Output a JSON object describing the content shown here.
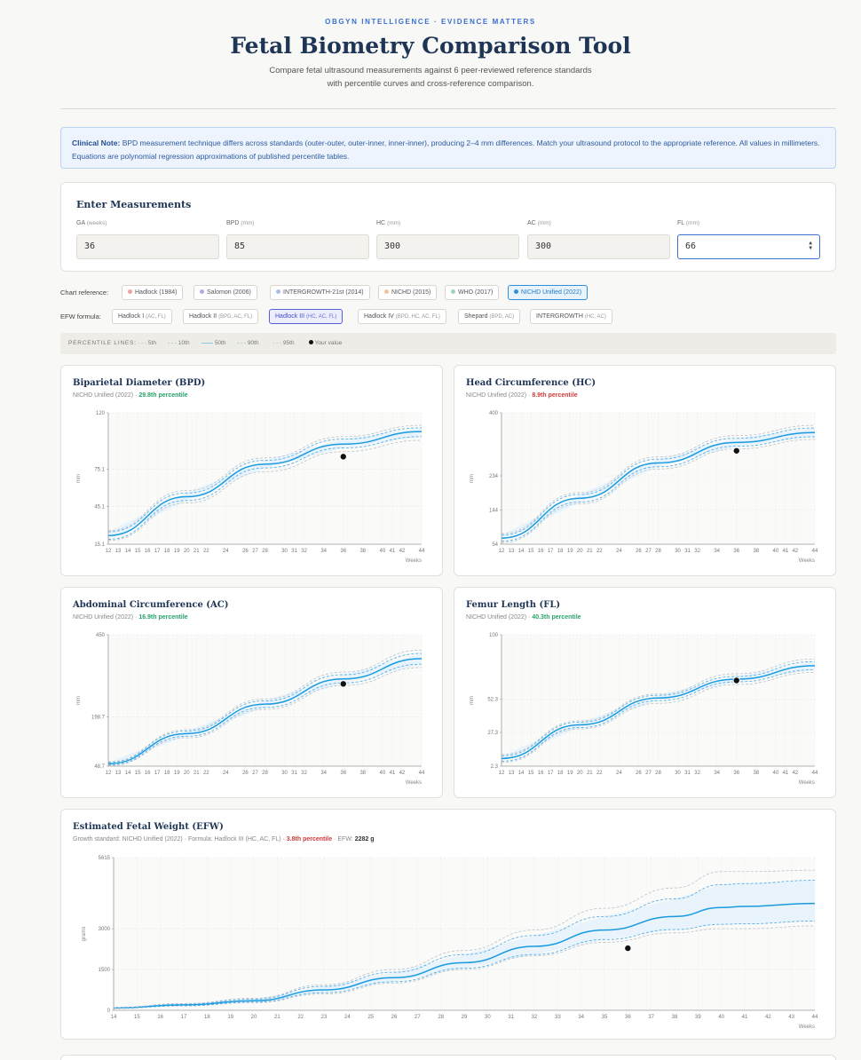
{
  "header": {
    "kicker": "OBGYN INTELLIGENCE · EVIDENCE MATTERS",
    "title": "Fetal Biometry Comparison Tool",
    "subtitle": "Compare fetal ultrasound measurements against 6 peer-reviewed reference standards with percentile curves and cross-reference comparison."
  },
  "note": {
    "label": "Clinical Note:",
    "text": "BPD measurement technique differs across standards (outer-outer, outer-inner, inner-inner), producing 2–4 mm differences. Match your ultrasound protocol to the appropriate reference. All values in millimeters. Equations are polynomial regression approximations of published percentile tables."
  },
  "entry": {
    "title": "Enter Measurements",
    "fields": [
      {
        "label": "GA",
        "unit": "(weeks)",
        "value": "36"
      },
      {
        "label": "BPD",
        "unit": "(mm)",
        "value": "85"
      },
      {
        "label": "HC",
        "unit": "(mm)",
        "value": "300"
      },
      {
        "label": "AC",
        "unit": "(mm)",
        "value": "300"
      },
      {
        "label": "FL",
        "unit": "(mm)",
        "value": "66"
      }
    ]
  },
  "chart_reference": {
    "label": "Chart reference:",
    "options": [
      {
        "label": "Hadlock (1984)",
        "color": "#e8a3a3"
      },
      {
        "label": "Salomon (2006)",
        "color": "#b9a8e6"
      },
      {
        "label": "INTERGROWTH-21st (2014)",
        "color": "#a8bde8"
      },
      {
        "label": "NICHD (2015)",
        "color": "#eec49a"
      },
      {
        "label": "WHO (2017)",
        "color": "#9fd3c0"
      },
      {
        "label": "NICHD Unified (2022)",
        "color": "#2f8fd9",
        "selected": true
      }
    ]
  },
  "efw_formula": {
    "label": "EFW formula:",
    "options": [
      {
        "label": "Hadlock I",
        "params": "(AC, FL)"
      },
      {
        "label": "Hadlock II",
        "params": "(BPD, AC, FL)"
      },
      {
        "label": "Hadlock III",
        "params": "(HC, AC, FL)",
        "selected": true
      },
      {
        "label": "Hadlock IV",
        "params": "(BPD, HC, AC, FL)"
      },
      {
        "label": "Shepard",
        "params": "(BPD, AC)"
      },
      {
        "label": "INTERGROWTH",
        "params": "(HC, AC)"
      }
    ]
  },
  "legend": {
    "label": "PERCENTILE LINES:",
    "items": [
      "5th",
      "10th",
      "50th",
      "90th",
      "95th",
      "Your value"
    ]
  },
  "colors": {
    "curve": "#1a9be0",
    "band": "#e3f1fb",
    "outer": "#9aa6b2",
    "point": "#111111"
  },
  "cards": {
    "bpd": {
      "title": "Biparietal Diameter (BPD)",
      "source": "NICHD Unified (2022) · ",
      "pct": "29.8th percentile"
    },
    "hc": {
      "title": "Head Circumference (HC)",
      "source": "NICHD Unified (2022) · ",
      "pct": "8.9th percentile"
    },
    "ac": {
      "title": "Abdominal Circumference (AC)",
      "source": "NICHD Unified (2022) · ",
      "pct": "16.9th percentile"
    },
    "fl": {
      "title": "Femur Length (FL)",
      "source": "NICHD Unified (2022) · ",
      "pct": "40.3th percentile"
    },
    "efw": {
      "title": "Estimated Fetal Weight (EFW)",
      "prefix": "Growth standard: NICHD Unified (2022) · Formula: Hadlock III (HC, AC, FL) · ",
      "pct": "3.8th percentile",
      "mid": " · EFW: ",
      "efw": "2282 g"
    }
  },
  "chart_data": [
    {
      "type": "line",
      "id": "bpd",
      "xlabel": "Weeks",
      "ylabel": "mm",
      "xlim": [
        12,
        44
      ],
      "ylim": [
        15.1,
        120
      ],
      "xticks": [
        12,
        13,
        14,
        15,
        16,
        17,
        18,
        19,
        20,
        21,
        22,
        24,
        26,
        27,
        28,
        30,
        31,
        32,
        34,
        36,
        38,
        40,
        41,
        42,
        44
      ],
      "yticks": [
        15.1,
        45.1,
        75.1,
        120
      ],
      "x": [
        12,
        20,
        28,
        36,
        44
      ],
      "series": [
        {
          "values": [
            18,
            48,
            73,
            89,
            98
          ]
        },
        {
          "values": [
            19,
            50,
            76,
            92,
            101
          ]
        },
        {
          "values": [
            22,
            53,
            79,
            95,
            105
          ]
        },
        {
          "values": [
            25,
            56,
            82,
            99,
            108
          ]
        },
        {
          "values": [
            26,
            58,
            84,
            101,
            110
          ]
        }
      ],
      "point": {
        "x": 36,
        "y": 85
      }
    },
    {
      "type": "line",
      "id": "hc",
      "xlabel": "Weeks",
      "ylabel": "mm",
      "xlim": [
        12,
        44
      ],
      "ylim": [
        54,
        400
      ],
      "xticks": [
        12,
        13,
        14,
        15,
        16,
        17,
        18,
        19,
        20,
        21,
        22,
        24,
        26,
        27,
        28,
        30,
        31,
        32,
        34,
        36,
        38,
        40,
        41,
        42,
        44
      ],
      "yticks": [
        54,
        144,
        234,
        400
      ],
      "x": [
        12,
        20,
        28,
        36,
        44
      ],
      "series": [
        {
          "values": [
            58,
            160,
            252,
            305,
            330
          ]
        },
        {
          "values": [
            62,
            165,
            258,
            312,
            337
          ]
        },
        {
          "values": [
            70,
            175,
            268,
            322,
            348
          ]
        },
        {
          "values": [
            78,
            185,
            278,
            333,
            360
          ]
        },
        {
          "values": [
            82,
            190,
            284,
            340,
            367
          ]
        }
      ],
      "point": {
        "x": 36,
        "y": 300
      }
    },
    {
      "type": "line",
      "id": "ac",
      "xlabel": "Weeks",
      "ylabel": "mm",
      "xlim": [
        12,
        44
      ],
      "ylim": [
        48.7,
        450
      ],
      "xticks": [
        12,
        13,
        14,
        15,
        16,
        17,
        18,
        19,
        20,
        21,
        22,
        24,
        26,
        27,
        28,
        30,
        31,
        32,
        34,
        36,
        38,
        40,
        41,
        42,
        44
      ],
      "yticks": [
        48.7,
        198.7,
        450
      ],
      "x": [
        12,
        20,
        28,
        36,
        44
      ],
      "series": [
        {
          "values": [
            50,
            135,
            222,
            295,
            350
          ]
        },
        {
          "values": [
            52,
            140,
            228,
            303,
            360
          ]
        },
        {
          "values": [
            56,
            148,
            238,
            315,
            377
          ]
        },
        {
          "values": [
            60,
            156,
            248,
            328,
            393
          ]
        },
        {
          "values": [
            62,
            160,
            254,
            336,
            403
          ]
        }
      ],
      "point": {
        "x": 36,
        "y": 300
      }
    },
    {
      "type": "line",
      "id": "fl",
      "xlabel": "Weeks",
      "ylabel": "mm",
      "xlim": [
        12,
        44
      ],
      "ylim": [
        2.3,
        100
      ],
      "xticks": [
        12,
        13,
        14,
        15,
        16,
        17,
        18,
        19,
        20,
        21,
        22,
        24,
        26,
        27,
        28,
        30,
        31,
        32,
        34,
        36,
        38,
        40,
        41,
        42,
        44
      ],
      "yticks": [
        2.3,
        27.3,
        52.3,
        100
      ],
      "x": [
        12,
        20,
        28,
        36,
        44
      ],
      "series": [
        {
          "values": [
            5,
            30,
            49,
            63,
            72
          ]
        },
        {
          "values": [
            6,
            31,
            51,
            65,
            74
          ]
        },
        {
          "values": [
            8,
            33,
            53,
            67,
            77
          ]
        },
        {
          "values": [
            10,
            35,
            55,
            69,
            80
          ]
        },
        {
          "values": [
            11,
            36,
            56,
            71,
            82
          ]
        }
      ],
      "point": {
        "x": 36,
        "y": 66
      }
    },
    {
      "type": "line",
      "id": "efw",
      "xlabel": "Weeks",
      "ylabel": "grams",
      "xlim": [
        14,
        44
      ],
      "ylim": [
        0,
        5615
      ],
      "xticks": [
        14,
        15,
        16,
        17,
        18,
        19,
        20,
        21,
        22,
        23,
        24,
        25,
        26,
        27,
        28,
        29,
        30,
        31,
        32,
        33,
        34,
        35,
        36,
        37,
        38,
        39,
        40,
        41,
        42,
        43,
        44
      ],
      "yticks": [
        0,
        1500,
        3000,
        5615
      ],
      "x": [
        14,
        17,
        20,
        23,
        26,
        29,
        32,
        35,
        38,
        40,
        41,
        44
      ],
      "series": [
        {
          "values": [
            70,
            160,
            280,
            600,
            1000,
            1500,
            2000,
            2500,
            2850,
            3000,
            3000,
            3100
          ]
        },
        {
          "values": [
            75,
            170,
            300,
            650,
            1050,
            1550,
            2050,
            2600,
            2970,
            3160,
            3180,
            3280
          ]
        },
        {
          "values": [
            85,
            200,
            350,
            750,
            1200,
            1750,
            2350,
            2950,
            3450,
            3780,
            3820,
            3930
          ]
        },
        {
          "values": [
            95,
            230,
            410,
            880,
            1400,
            2050,
            2750,
            3450,
            4100,
            4620,
            4660,
            4780
          ]
        },
        {
          "values": [
            100,
            250,
            440,
            940,
            1500,
            2200,
            2950,
            3750,
            4500,
            5100,
            5100,
            5150
          ]
        }
      ],
      "point": {
        "x": 36,
        "y": 2282
      }
    }
  ]
}
